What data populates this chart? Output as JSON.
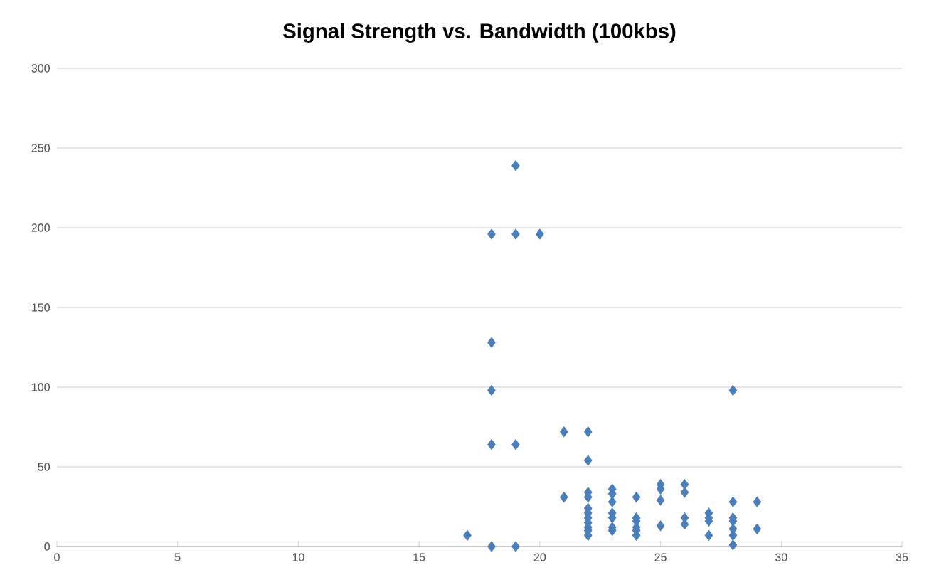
{
  "chart_data": {
    "type": "scatter",
    "title": "Signal Strength vs. Bandwidth (100kbs)",
    "x": [
      17,
      18,
      18,
      18,
      18,
      18,
      19,
      19,
      19,
      19,
      20,
      21,
      21,
      22,
      22,
      22,
      22,
      22,
      22,
      22,
      22,
      22,
      22,
      22,
      23,
      23,
      23,
      23,
      23,
      23,
      23,
      24,
      24,
      24,
      24,
      24,
      24,
      25,
      25,
      25,
      25,
      26,
      26,
      26,
      26,
      27,
      27,
      27,
      27,
      28,
      28,
      28,
      28,
      28,
      28,
      28,
      29,
      29
    ],
    "values": [
      7,
      0,
      64,
      98,
      128,
      196,
      0,
      64,
      196,
      239,
      196,
      31,
      72,
      72,
      54,
      34,
      31,
      24,
      21,
      18,
      15,
      12,
      10,
      7,
      36,
      33,
      28,
      21,
      18,
      12,
      10,
      31,
      18,
      16,
      12,
      10,
      7,
      39,
      36,
      29,
      13,
      39,
      34,
      18,
      14,
      21,
      18,
      16,
      7,
      98,
      28,
      18,
      16,
      11,
      7,
      1,
      28,
      11
    ],
    "color": "#4a7ebb",
    "marker": "diamond",
    "grid": "y",
    "xlim": [
      0,
      35
    ],
    "ylim": [
      0,
      300
    ],
    "xticks": [
      0,
      5,
      10,
      15,
      20,
      25,
      30,
      35
    ],
    "yticks": [
      0,
      50,
      100,
      150,
      200,
      250,
      300
    ]
  }
}
